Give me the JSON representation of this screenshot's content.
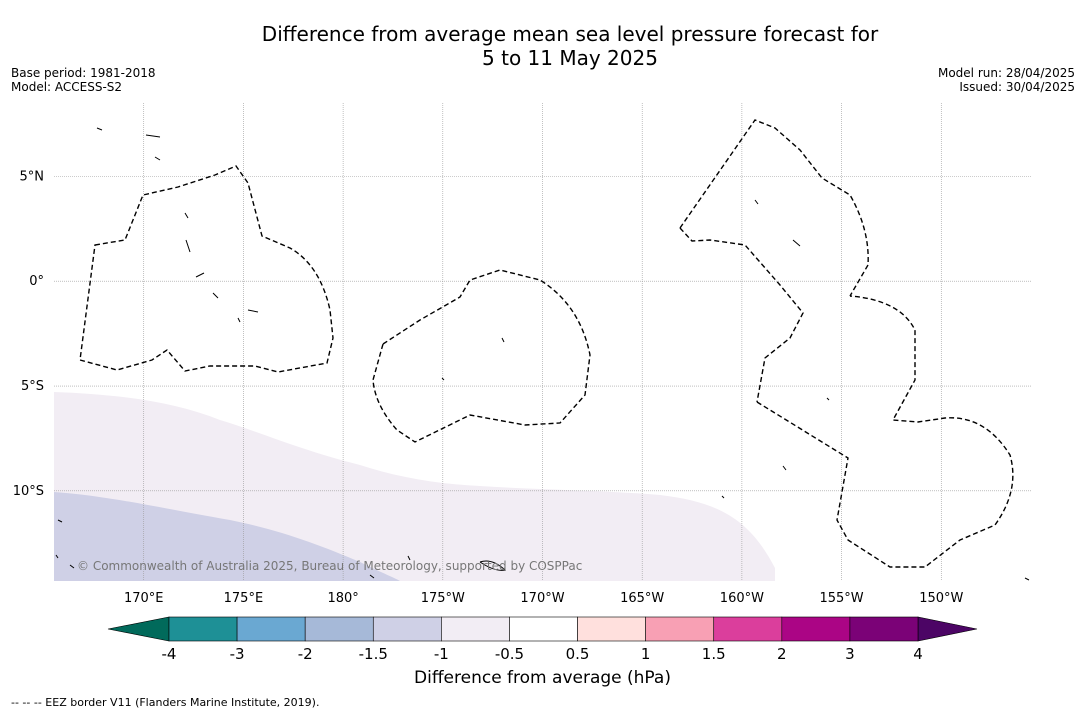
{
  "title": {
    "line1": "Difference from average mean sea level pressure forecast for",
    "line2": "5 to 11 May 2025"
  },
  "meta": {
    "base_period": "Base period: 1981-2018",
    "model": "Model: ACCESS-S2",
    "model_run": "Model run: 28/04/2025",
    "issued": "Issued: 30/04/2025"
  },
  "map": {
    "lon_range": [
      165.5,
      214.5
    ],
    "lat_range": [
      -14.3,
      8.5
    ],
    "lon_ticks": [
      {
        "value": 170,
        "label": "170°E"
      },
      {
        "value": 175,
        "label": "175°E"
      },
      {
        "value": 180,
        "label": "180°"
      },
      {
        "value": 185,
        "label": "175°W"
      },
      {
        "value": 190,
        "label": "170°W"
      },
      {
        "value": 195,
        "label": "165°W"
      },
      {
        "value": 200,
        "label": "160°W"
      },
      {
        "value": 205,
        "label": "155°W"
      },
      {
        "value": 210,
        "label": "150°W"
      }
    ],
    "lat_ticks": [
      {
        "value": 5,
        "label": "5°N"
      },
      {
        "value": 0,
        "label": "0°"
      },
      {
        "value": -5,
        "label": "5°S"
      },
      {
        "value": -10,
        "label": "10°S"
      }
    ],
    "gridlines": true,
    "copyright": "© Commonwealth of Australia 2025, Bureau of Meteorology, supported by COSPPac",
    "field_colors": {
      "neg_0_5_to_1": "#f2edf4",
      "neg_1_to_1_5": "#cfd0e6"
    }
  },
  "colorbar": {
    "label": "Difference from average (hPa)",
    "tick_labels": [
      "-4",
      "-3",
      "-2",
      "-1.5",
      "-1",
      "-0.5",
      "0.5",
      "1",
      "1.5",
      "2",
      "3",
      "4"
    ],
    "low_extend_color": "#016a5b",
    "high_extend_color": "#4c0565",
    "colors": [
      "#1e9096",
      "#6aa8d2",
      "#a6b9d8",
      "#cfd0e6",
      "#f2edf4",
      "#ffffff",
      "#ffe0dd",
      "#f8a0b4",
      "#db3e9c",
      "#ab0585",
      "#7b0277"
    ]
  },
  "footnote": "--  --  -- EEZ border V11 (Flanders Marine Institute, 2019)."
}
